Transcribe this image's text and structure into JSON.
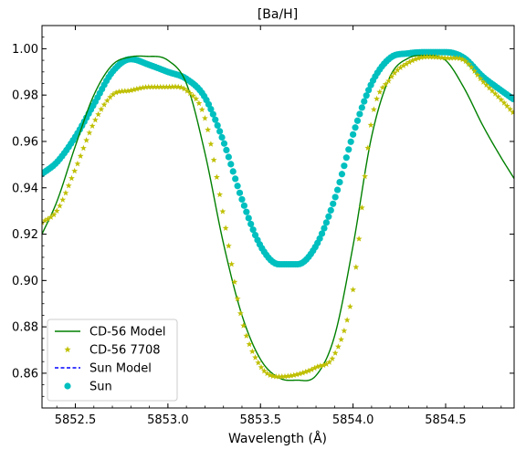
{
  "chart_data": {
    "type": "line",
    "title": "[Ba/H]",
    "xlabel": "Wavelength (Å)",
    "ylabel": "",
    "xlim": [
      5852.32,
      5854.87
    ],
    "ylim": [
      0.845,
      1.01
    ],
    "xticks": [
      5852.5,
      5853.0,
      5853.5,
      5854.0,
      5854.5
    ],
    "xtick_labels": [
      "5852.5",
      "5853.0",
      "5853.5",
      "5854.0",
      "5854.5"
    ],
    "yticks": [
      0.86,
      0.88,
      0.9,
      0.92,
      0.94,
      0.96,
      0.98,
      1.0
    ],
    "ytick_labels": [
      "0.86",
      "0.88",
      "0.90",
      "0.92",
      "0.94",
      "0.96",
      "0.98",
      "1.00"
    ],
    "legend_position": "lower-left",
    "colors": {
      "cd56_model": "#008000",
      "cd56_obs": "#bfbf00",
      "sun_model": "#0000ff",
      "sun": "#00bfbf"
    },
    "series": [
      {
        "name": "CD-56 Model",
        "style": "line",
        "color": "#008000",
        "x": [
          5852.32,
          5852.4,
          5852.5,
          5852.6,
          5852.7,
          5852.8,
          5852.9,
          5853.0,
          5853.1,
          5853.2,
          5853.3,
          5853.4,
          5853.5,
          5853.6,
          5853.7,
          5853.8,
          5853.9,
          5854.0,
          5854.1,
          5854.2,
          5854.3,
          5854.4,
          5854.5,
          5854.6,
          5854.7,
          5854.8,
          5854.87
        ],
        "y": [
          0.92,
          0.934,
          0.958,
          0.98,
          0.993,
          0.9965,
          0.9967,
          0.995,
          0.985,
          0.955,
          0.916,
          0.885,
          0.866,
          0.858,
          0.857,
          0.859,
          0.876,
          0.915,
          0.962,
          0.988,
          0.996,
          0.997,
          0.995,
          0.983,
          0.967,
          0.953,
          0.944
        ]
      },
      {
        "name": "CD-56 7708",
        "style": "marker-star",
        "color": "#bfbf00",
        "x": [
          5852.32,
          5852.4,
          5852.5,
          5852.6,
          5852.7,
          5852.8,
          5852.9,
          5853.0,
          5853.1,
          5853.2,
          5853.3,
          5853.4,
          5853.5,
          5853.6,
          5853.7,
          5853.8,
          5853.9,
          5854.0,
          5854.1,
          5854.2,
          5854.3,
          5854.4,
          5854.5,
          5854.6,
          5854.7,
          5854.8,
          5854.87
        ],
        "y": [
          0.925,
          0.93,
          0.948,
          0.968,
          0.98,
          0.982,
          0.9835,
          0.9835,
          0.982,
          0.97,
          0.928,
          0.883,
          0.863,
          0.8585,
          0.8595,
          0.8625,
          0.868,
          0.896,
          0.969,
          0.987,
          0.994,
          0.9965,
          0.996,
          0.995,
          0.986,
          0.978,
          0.972
        ]
      },
      {
        "name": "Sun Model",
        "style": "dashed",
        "color": "#0000ff",
        "x": [],
        "y": []
      },
      {
        "name": "Sun",
        "style": "marker-circle",
        "color": "#00bfbf",
        "x": [
          5852.32,
          5852.4,
          5852.5,
          5852.6,
          5852.7,
          5852.8,
          5852.9,
          5853.0,
          5853.1,
          5853.2,
          5853.3,
          5853.4,
          5853.5,
          5853.6,
          5853.7,
          5853.8,
          5853.9,
          5854.0,
          5854.1,
          5854.2,
          5854.3,
          5854.4,
          5854.5,
          5854.6,
          5854.7,
          5854.8,
          5854.87
        ],
        "y": [
          0.946,
          0.951,
          0.962,
          0.976,
          0.99,
          0.9955,
          0.993,
          0.99,
          0.987,
          0.979,
          0.96,
          0.935,
          0.915,
          0.907,
          0.907,
          0.915,
          0.935,
          0.963,
          0.985,
          0.996,
          0.998,
          0.9985,
          0.9985,
          0.996,
          0.988,
          0.982,
          0.978
        ]
      }
    ]
  }
}
